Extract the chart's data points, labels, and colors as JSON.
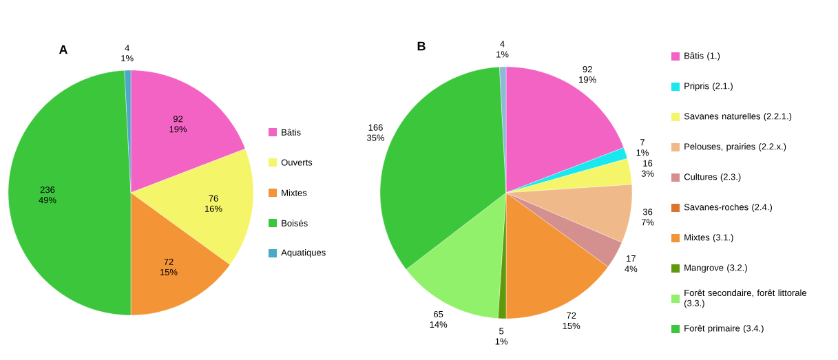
{
  "chart_data": [
    {
      "type": "pie",
      "title": "A",
      "legend": "right",
      "categories": [
        "Bâtis",
        "Ouverts",
        "Mixtes",
        "Boisés",
        "Aquatiques"
      ],
      "values": [
        92,
        76,
        72,
        236,
        4
      ],
      "colors": [
        "#f263c4",
        "#f5f56a",
        "#f39436",
        "#3cc63c",
        "#4aa8c8"
      ],
      "value_labels": [
        "92 19%",
        "76 16%",
        "72 15%",
        "236 49%",
        "4 1%"
      ]
    },
    {
      "type": "pie",
      "title": "B",
      "legend": "right",
      "categories": [
        "Bâtis (1.)",
        "Pripris (2.1.)",
        "Savanes naturelles (2.2.1.)",
        "Pelouses, prairies (2.2.x.)",
        "Cultures (2.3.)",
        "Savanes-roches (2.4.)",
        "Mixtes (3.1.)",
        "Mangrove (3.2.)",
        "Forêt secondaire, forêt littorale (3.3.)",
        "Forêt primaire (3.4.)",
        null
      ],
      "values": [
        92,
        7,
        16,
        36,
        17,
        0,
        72,
        5,
        65,
        166,
        4
      ],
      "colors": [
        "#f263c4",
        "#19e8ee",
        "#f5f56a",
        "#f0b98a",
        "#d4908f",
        "#d9752d",
        "#f39436",
        "#5f9a0e",
        "#92f16a",
        "#3cc63c",
        "#8fb8d8"
      ],
      "value_labels": [
        "92 19%",
        "7 1%",
        "16 3%",
        "36 7%",
        "17 4%",
        null,
        "72 15%",
        "5 1%",
        "65 14%",
        "166 35%",
        "4 1%"
      ]
    }
  ]
}
